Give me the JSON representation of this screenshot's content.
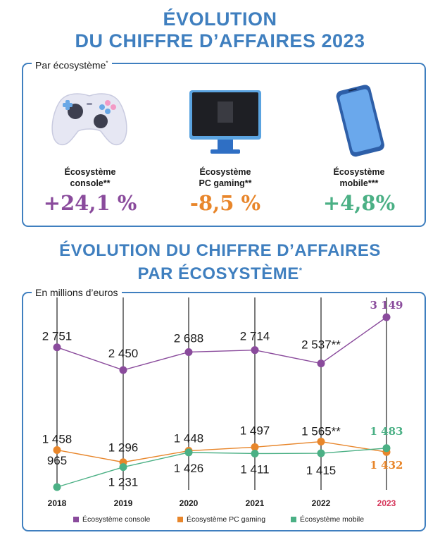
{
  "title_top": [
    "ÉVOLUTION",
    "DU CHIFFRE D’AFFAIRES 2023"
  ],
  "panel1_tag": "Par écosystème",
  "panel1_tag_mark": "*",
  "ecosystems": [
    {
      "label_l1": "Écosystème",
      "label_l2": "console**",
      "pct": "+24,1 %",
      "color": "#8a4b9c",
      "icon": "gamepad-icon"
    },
    {
      "label_l1": "Écosystème",
      "label_l2": "PC gaming**",
      "pct": "-8,5 %",
      "color": "#e8862b",
      "icon": "monitor-icon"
    },
    {
      "label_l1": "Écosystème",
      "label_l2": "mobile***",
      "pct": "+4,8%",
      "color": "#4bb085",
      "icon": "smartphone-icon"
    }
  ],
  "title_mid_l1": "ÉVOLUTION DU CHIFFRE D’AFFAIRES",
  "title_mid_l2": "PAR ÉCOSYSTÈME",
  "title_mid_mark": "*",
  "panel2_tag": "En millions d’euros",
  "colors": {
    "title": "#3f7fbf",
    "console": "#8a4b9c",
    "pc": "#e8862b",
    "mobile": "#4bb085",
    "year_highlight": "#d6365a"
  },
  "chart_data": {
    "type": "line",
    "x": [
      "2018",
      "2019",
      "2020",
      "2021",
      "2022",
      "2023"
    ],
    "highlight_x": "2023",
    "ylabel": "En millions d’euros",
    "grid": "vertical lines at each year",
    "series": [
      {
        "name": "Écosystème console",
        "key": "console",
        "values": [
          2751,
          2450,
          2688,
          2714,
          2537,
          3149
        ],
        "labels": [
          "2 751",
          "2 450",
          "2 688",
          "2 714",
          "2 537**",
          "3 149"
        ]
      },
      {
        "name": "Écosystème PC gaming",
        "key": "pc",
        "values": [
          1458,
          1296,
          1448,
          1497,
          1565,
          1432
        ],
        "labels": [
          "1 458",
          "1 296",
          "1 448",
          "1 497",
          "1 565**",
          "1 432"
        ]
      },
      {
        "name": "Écosystème mobile",
        "key": "mobile",
        "values": [
          965,
          1231,
          1426,
          1411,
          1415,
          1483
        ],
        "labels": [
          "965",
          "1 231",
          "1 426",
          "1 411",
          "1 415",
          "1 483"
        ]
      }
    ],
    "legend_position": "bottom"
  }
}
